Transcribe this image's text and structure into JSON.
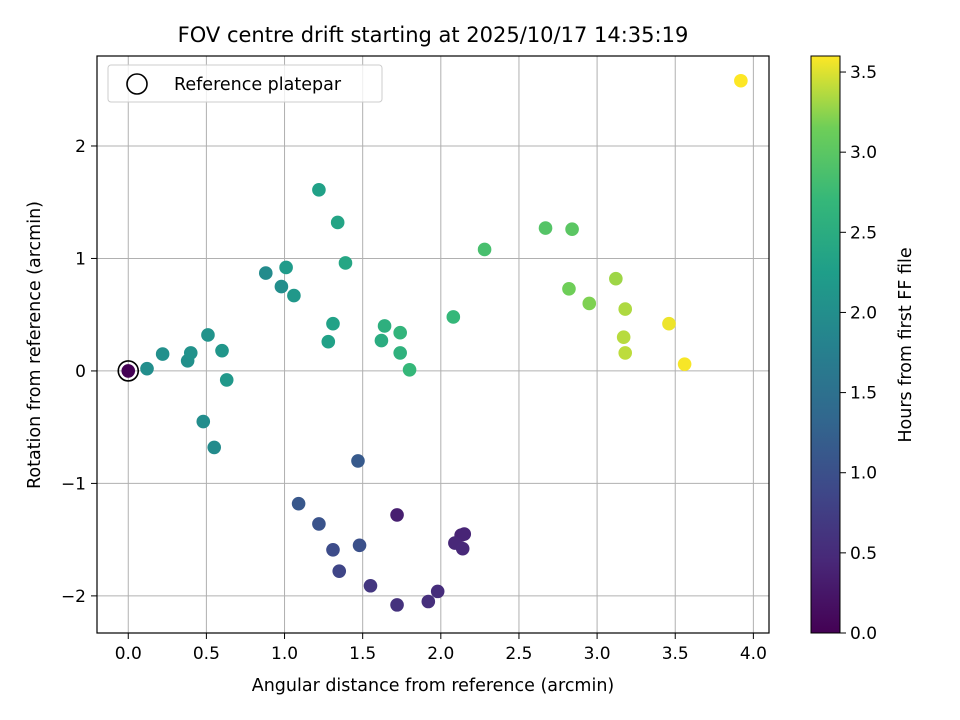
{
  "chart_data": {
    "type": "scatter",
    "title": "FOV centre drift starting at 2025/10/17 14:35:19",
    "xlabel": "Angular distance from reference (arcmin)",
    "ylabel": "Rotation from reference (arcmin)",
    "xlim": [
      -0.2,
      4.1
    ],
    "ylim": [
      -2.33,
      2.8
    ],
    "xticks": [
      0.0,
      0.5,
      1.0,
      1.5,
      2.0,
      2.5,
      3.0,
      3.5,
      4.0
    ],
    "xtick_labels": [
      "0.0",
      "0.5",
      "1.0",
      "1.5",
      "2.0",
      "2.5",
      "3.0",
      "3.5",
      "4.0"
    ],
    "yticks": [
      -2,
      -1,
      0,
      1,
      2
    ],
    "ytick_labels": [
      "−2",
      "−1",
      "0",
      "1",
      "2"
    ],
    "grid": true,
    "legend": {
      "placement": "top-left",
      "entries": [
        "Reference platepar"
      ]
    },
    "reference_point": {
      "x": 0.0,
      "y": 0.0
    },
    "colorbar": {
      "label": "Hours from first FF file",
      "colormap": "viridis",
      "range": [
        0.0,
        3.6
      ],
      "ticks": [
        0.0,
        0.5,
        1.0,
        1.5,
        2.0,
        2.5,
        3.0,
        3.5
      ],
      "tick_labels": [
        "0.0",
        "0.5",
        "1.0",
        "1.5",
        "2.0",
        "2.5",
        "3.0",
        "3.5"
      ]
    },
    "points": [
      {
        "x": 0.0,
        "y": 0.0,
        "hours": 0.0
      },
      {
        "x": 1.72,
        "y": -1.28,
        "hours": 0.35
      },
      {
        "x": 2.13,
        "y": -1.46,
        "hours": 0.4
      },
      {
        "x": 2.15,
        "y": -1.45,
        "hours": 0.42
      },
      {
        "x": 2.09,
        "y": -1.53,
        "hours": 0.45
      },
      {
        "x": 2.14,
        "y": -1.58,
        "hours": 0.47
      },
      {
        "x": 1.98,
        "y": -1.96,
        "hours": 0.52
      },
      {
        "x": 1.92,
        "y": -2.05,
        "hours": 0.55
      },
      {
        "x": 1.72,
        "y": -2.08,
        "hours": 0.58
      },
      {
        "x": 1.55,
        "y": -1.91,
        "hours": 0.65
      },
      {
        "x": 1.35,
        "y": -1.78,
        "hours": 0.85
      },
      {
        "x": 1.31,
        "y": -1.59,
        "hours": 0.95
      },
      {
        "x": 1.48,
        "y": -1.55,
        "hours": 1.0
      },
      {
        "x": 1.22,
        "y": -1.36,
        "hours": 1.05
      },
      {
        "x": 1.09,
        "y": -1.18,
        "hours": 1.1
      },
      {
        "x": 1.47,
        "y": -0.8,
        "hours": 1.15
      },
      {
        "x": 0.55,
        "y": -0.68,
        "hours": 1.95
      },
      {
        "x": 0.48,
        "y": -0.45,
        "hours": 1.98
      },
      {
        "x": 0.12,
        "y": 0.02,
        "hours": 2.0
      },
      {
        "x": 0.22,
        "y": 0.15,
        "hours": 2.02
      },
      {
        "x": 0.38,
        "y": 0.09,
        "hours": 2.03
      },
      {
        "x": 0.4,
        "y": 0.16,
        "hours": 2.05
      },
      {
        "x": 0.51,
        "y": 0.32,
        "hours": 2.08
      },
      {
        "x": 0.6,
        "y": 0.18,
        "hours": 2.12
      },
      {
        "x": 0.63,
        "y": -0.08,
        "hours": 2.15
      },
      {
        "x": 0.88,
        "y": 0.87,
        "hours": 1.95
      },
      {
        "x": 0.98,
        "y": 0.75,
        "hours": 2.0
      },
      {
        "x": 1.06,
        "y": 0.67,
        "hours": 2.15
      },
      {
        "x": 1.01,
        "y": 0.92,
        "hours": 2.2
      },
      {
        "x": 1.22,
        "y": 1.61,
        "hours": 2.3
      },
      {
        "x": 1.34,
        "y": 1.32,
        "hours": 2.35
      },
      {
        "x": 1.39,
        "y": 0.96,
        "hours": 2.4
      },
      {
        "x": 1.31,
        "y": 0.42,
        "hours": 2.32
      },
      {
        "x": 1.28,
        "y": 0.26,
        "hours": 2.3
      },
      {
        "x": 1.64,
        "y": 0.4,
        "hours": 2.55
      },
      {
        "x": 1.62,
        "y": 0.27,
        "hours": 2.5
      },
      {
        "x": 1.74,
        "y": 0.34,
        "hours": 2.65
      },
      {
        "x": 1.74,
        "y": 0.16,
        "hours": 2.6
      },
      {
        "x": 1.8,
        "y": 0.01,
        "hours": 2.7
      },
      {
        "x": 2.08,
        "y": 0.48,
        "hours": 2.7
      },
      {
        "x": 2.28,
        "y": 1.08,
        "hours": 2.85
      },
      {
        "x": 2.67,
        "y": 1.27,
        "hours": 2.95
      },
      {
        "x": 2.84,
        "y": 1.26,
        "hours": 3.0
      },
      {
        "x": 2.82,
        "y": 0.73,
        "hours": 3.15
      },
      {
        "x": 2.95,
        "y": 0.6,
        "hours": 3.2
      },
      {
        "x": 3.12,
        "y": 0.82,
        "hours": 3.3
      },
      {
        "x": 3.18,
        "y": 0.55,
        "hours": 3.35
      },
      {
        "x": 3.17,
        "y": 0.3,
        "hours": 3.38
      },
      {
        "x": 3.18,
        "y": 0.16,
        "hours": 3.4
      },
      {
        "x": 3.46,
        "y": 0.42,
        "hours": 3.55
      },
      {
        "x": 3.56,
        "y": 0.06,
        "hours": 3.58
      },
      {
        "x": 3.92,
        "y": 2.58,
        "hours": 3.6
      }
    ]
  }
}
